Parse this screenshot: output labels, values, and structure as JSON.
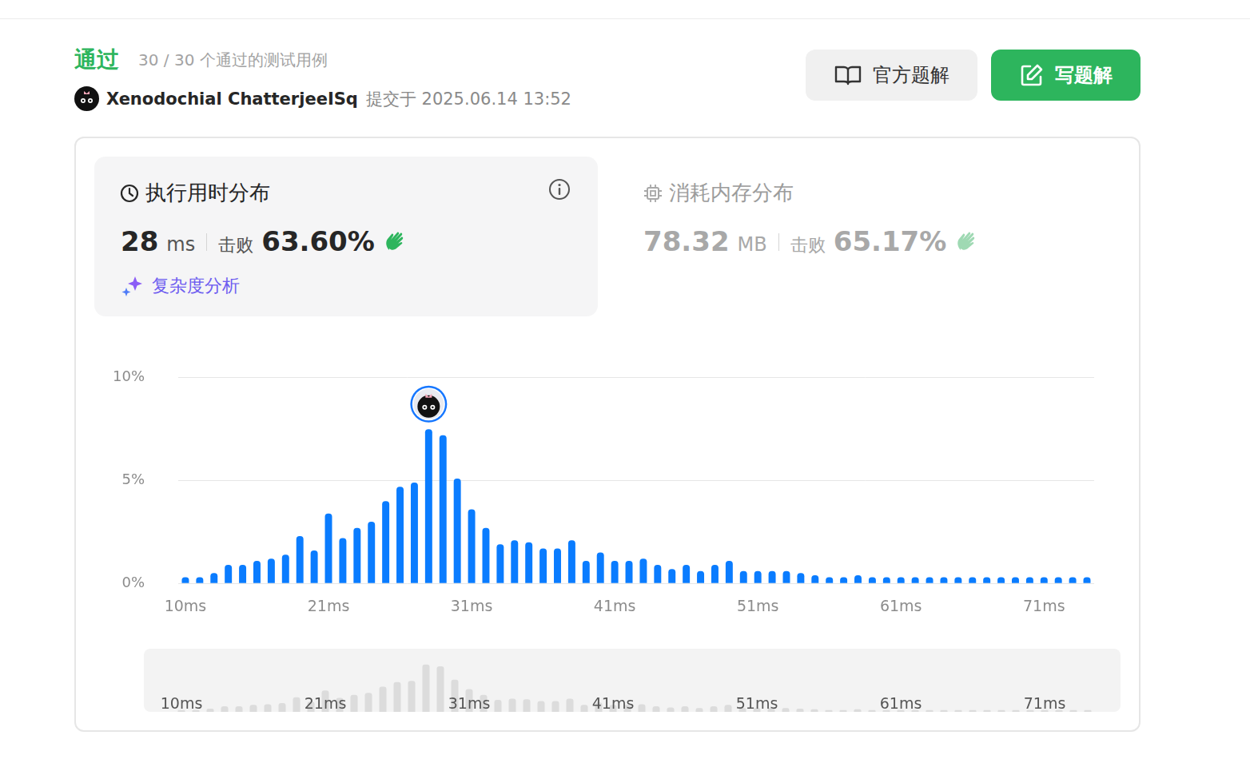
{
  "header": {
    "status": "通过",
    "summary": "30 / 30 个通过的测试用例",
    "user": "Xenodochial ChatterjeeISq",
    "submitted": "提交于 2025.06.14 13:52"
  },
  "buttons": [
    "官方题解",
    "写题解"
  ],
  "runtime": {
    "title": "执行用时分布",
    "value": "28",
    "unit": "ms",
    "beats_label": "击败",
    "beats": "63.60%",
    "link": "复杂度分析"
  },
  "memory": {
    "title": "消耗内存分布",
    "value": "78.32",
    "unit": "MB",
    "beats_label": "击败",
    "beats": "65.17%"
  },
  "chart_data": {
    "type": "bar",
    "categories": [
      "10ms",
      null,
      null,
      null,
      null,
      null,
      null,
      null,
      null,
      null,
      "21ms",
      null,
      null,
      null,
      null,
      null,
      null,
      null,
      null,
      null,
      "31ms",
      null,
      null,
      null,
      null,
      null,
      null,
      null,
      null,
      null,
      "41ms",
      null,
      null,
      null,
      null,
      null,
      null,
      null,
      null,
      null,
      "51ms",
      null,
      null,
      null,
      null,
      null,
      null,
      null,
      null,
      null,
      "61ms",
      null,
      null,
      null,
      null,
      null,
      null,
      null,
      null,
      null,
      "71ms",
      null,
      null,
      null
    ],
    "values": [
      0.3,
      0.3,
      0.5,
      0.9,
      0.9,
      1.1,
      1.2,
      1.4,
      2.3,
      1.6,
      3.4,
      2.2,
      2.7,
      3.0,
      4.0,
      4.7,
      4.9,
      7.5,
      7.2,
      5.1,
      3.6,
      2.7,
      1.9,
      2.1,
      2.0,
      1.7,
      1.7,
      2.1,
      1.1,
      1.5,
      1.1,
      1.1,
      1.2,
      0.9,
      0.7,
      0.9,
      0.6,
      0.9,
      1.1,
      0.6,
      0.6,
      0.6,
      0.6,
      0.5,
      0.4,
      0.3,
      0.3,
      0.4,
      0.3,
      0.3,
      0.3,
      0.3,
      0.3,
      0.3,
      0.3,
      0.3,
      0.3,
      0.3,
      0.3,
      0.3,
      0.3,
      0.3,
      0.3,
      0.3
    ],
    "color": "#0a7cff",
    "ylim": [
      0,
      10
    ],
    "yticks": [
      {
        "value": 0,
        "label": "0%"
      },
      {
        "value": 5,
        "label": "5%"
      },
      {
        "value": 10,
        "label": "10%"
      }
    ],
    "grid": true
  }
}
